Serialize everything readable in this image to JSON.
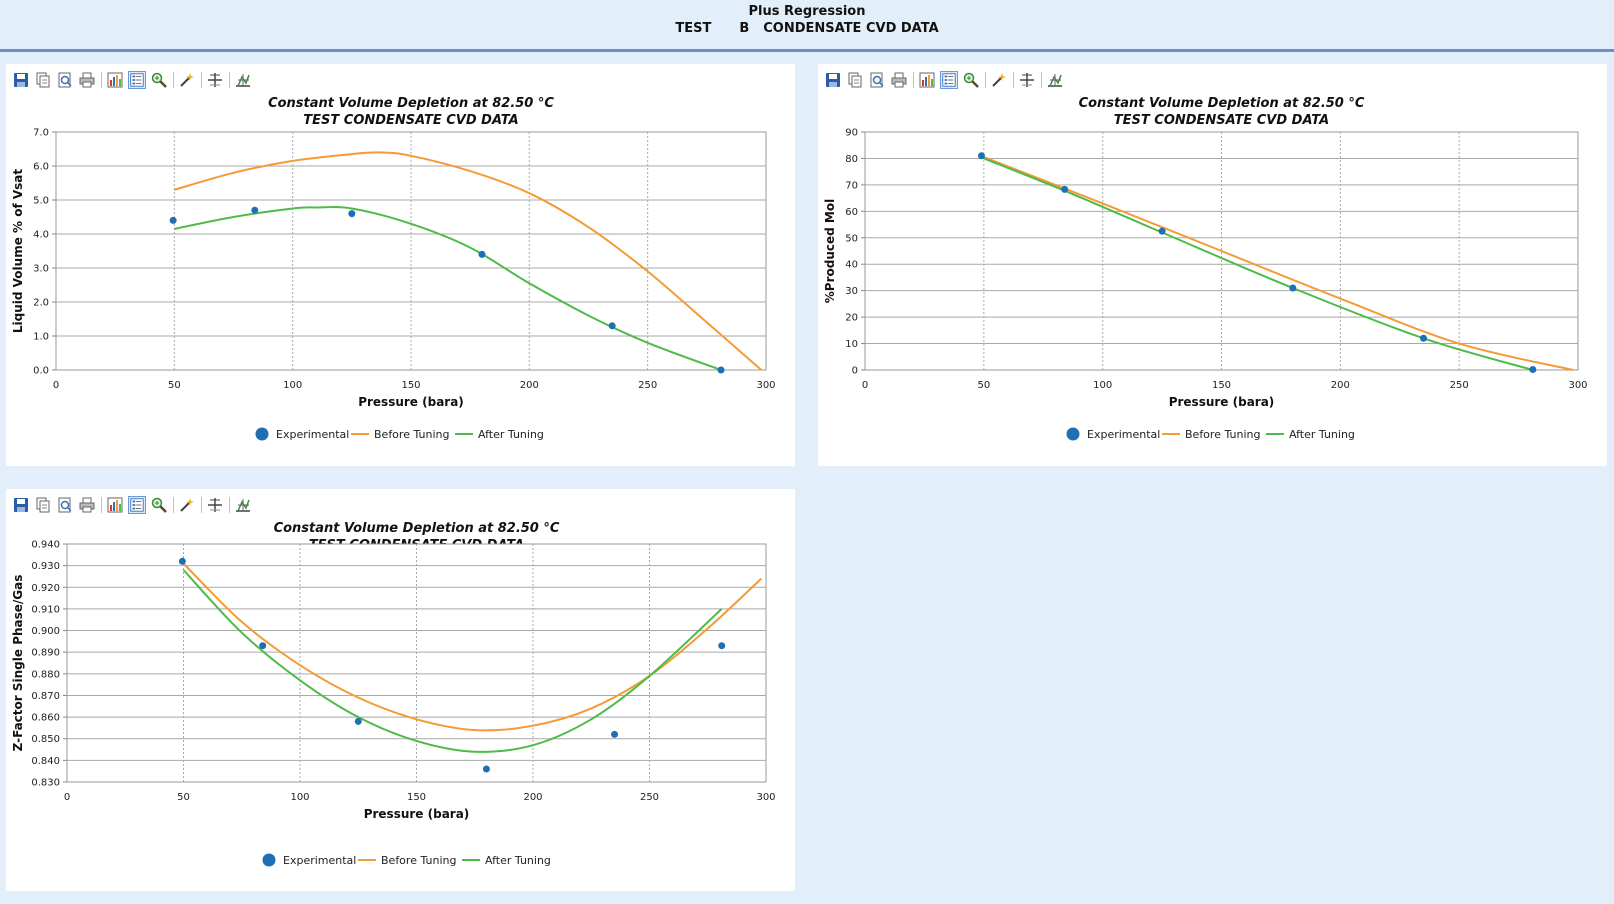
{
  "header": {
    "title": "Plus Regression",
    "subtitle_parts": [
      "TEST",
      "B",
      "CONDENSATE CVD DATA"
    ]
  },
  "toolbar_icons": [
    "save-icon",
    "copy-icon",
    "print-preview-icon",
    "print-icon",
    "chart-options-icon",
    "legend-toggle-icon",
    "zoom-icon",
    "wand-icon",
    "crosshair-icon",
    "pan-icon"
  ],
  "colors": {
    "experimental": "#1f6fb4",
    "before_tuning": "#f59a35",
    "after_tuning": "#4dbb4a",
    "grid": "#a9a9a9",
    "header_border": "#6b8fc9"
  },
  "chart_data": [
    {
      "type": "line",
      "title": "Constant Volume Depletion at 82.50 °C",
      "subtitle": "TEST CONDENSATE CVD DATA",
      "xlabel": "Pressure (bara)",
      "ylabel": "Liquid Volume % of Vsat",
      "xlim": [
        0,
        300
      ],
      "ylim": [
        0,
        7
      ],
      "xticks": [
        "0",
        "50",
        "100",
        "150",
        "200",
        "250",
        "300"
      ],
      "yticks": [
        "0.0",
        "1.0",
        "2.0",
        "3.0",
        "4.0",
        "5.0",
        "6.0",
        "7.0"
      ],
      "grid": "on",
      "legend_position": "bottom",
      "series": [
        {
          "name": "Experimental",
          "kind": "scatter",
          "x": [
            49.5,
            84,
            125,
            180,
            235,
            281
          ],
          "y": [
            4.4,
            4.7,
            4.6,
            3.4,
            1.3,
            0.0
          ]
        },
        {
          "name": "Before Tuning",
          "kind": "line",
          "x": [
            50,
            75,
            100,
            125,
            137,
            150,
            175,
            200,
            225,
            250,
            275,
            298
          ],
          "y": [
            5.3,
            5.8,
            6.15,
            6.35,
            6.4,
            6.3,
            5.85,
            5.2,
            4.2,
            2.9,
            1.4,
            0.0
          ]
        },
        {
          "name": "After Tuning",
          "kind": "line",
          "x": [
            50,
            75,
            100,
            110,
            125,
            150,
            175,
            200,
            225,
            250,
            281
          ],
          "y": [
            4.15,
            4.5,
            4.75,
            4.78,
            4.75,
            4.3,
            3.6,
            2.55,
            1.6,
            0.8,
            0.0
          ]
        }
      ]
    },
    {
      "type": "line",
      "title": "Constant Volume Depletion at 82.50 °C",
      "subtitle": "TEST CONDENSATE CVD DATA",
      "xlabel": "Pressure (bara)",
      "ylabel": "%Produced Mol",
      "xlim": [
        0,
        300
      ],
      "ylim": [
        0,
        90
      ],
      "xticks": [
        "0",
        "50",
        "100",
        "150",
        "200",
        "250",
        "300"
      ],
      "yticks": [
        "0",
        "10",
        "20",
        "30",
        "40",
        "50",
        "60",
        "70",
        "80",
        "90"
      ],
      "grid": "on",
      "legend_position": "bottom",
      "series": [
        {
          "name": "Experimental",
          "kind": "scatter",
          "x": [
            49,
            84,
            125,
            180,
            235,
            281
          ],
          "y": [
            81,
            68.3,
            52.5,
            31,
            12,
            0.2
          ]
        },
        {
          "name": "Before Tuning",
          "kind": "line",
          "x": [
            50,
            100,
            150,
            200,
            250,
            298
          ],
          "y": [
            80.5,
            63,
            45,
            27,
            10,
            0
          ]
        },
        {
          "name": "After Tuning",
          "kind": "line",
          "x": [
            50,
            84,
            125,
            180,
            235,
            281
          ],
          "y": [
            80,
            67.8,
            52,
            31,
            12,
            0
          ]
        }
      ]
    },
    {
      "type": "line",
      "title": "Constant Volume Depletion at 82.50 °C",
      "subtitle": "TEST CONDENSATE CVD DATA",
      "xlabel": "Pressure (bara)",
      "ylabel": "Z-Factor Single Phase/Gas",
      "xlim": [
        0,
        300
      ],
      "ylim": [
        0.83,
        0.94
      ],
      "xticks": [
        "0",
        "50",
        "100",
        "150",
        "200",
        "250",
        "300"
      ],
      "yticks": [
        "0.830",
        "0.840",
        "0.850",
        "0.860",
        "0.870",
        "0.880",
        "0.890",
        "0.900",
        "0.910",
        "0.920",
        "0.930",
        "0.940"
      ],
      "grid": "on",
      "legend_position": "bottom",
      "series": [
        {
          "name": "Experimental",
          "kind": "scatter",
          "x": [
            49.5,
            84,
            125,
            180,
            235,
            281
          ],
          "y": [
            0.932,
            0.893,
            0.858,
            0.836,
            0.852,
            0.893
          ]
        },
        {
          "name": "Before Tuning",
          "kind": "line",
          "x": [
            50,
            75,
            100,
            125,
            150,
            175,
            200,
            225,
            250,
            275,
            298
          ],
          "y": [
            0.931,
            0.904,
            0.884,
            0.869,
            0.859,
            0.854,
            0.856,
            0.864,
            0.879,
            0.901,
            0.924
          ]
        },
        {
          "name": "After Tuning",
          "kind": "line",
          "x": [
            50,
            75,
            100,
            125,
            150,
            175,
            200,
            225,
            250,
            281
          ],
          "y": [
            0.928,
            0.899,
            0.877,
            0.86,
            0.849,
            0.844,
            0.847,
            0.859,
            0.879,
            0.91
          ]
        }
      ]
    }
  ]
}
